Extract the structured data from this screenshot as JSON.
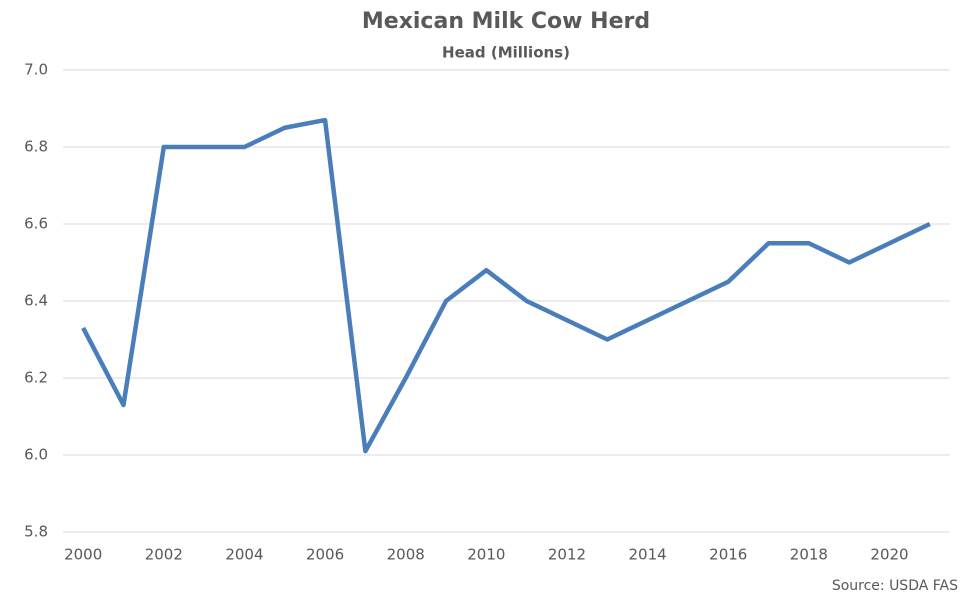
{
  "chart_data": {
    "type": "line",
    "title": "Mexican Milk Cow Herd",
    "subtitle": "Head (Millions)",
    "source": "Source: USDA FAS",
    "x": [
      2000,
      2001,
      2002,
      2003,
      2004,
      2005,
      2006,
      2007,
      2008,
      2009,
      2010,
      2011,
      2012,
      2013,
      2014,
      2015,
      2016,
      2017,
      2018,
      2019,
      2020,
      2021
    ],
    "series": [
      {
        "name": "Mexican Milk Cow Herd",
        "color": "#4a7ebb",
        "values": [
          6.33,
          6.13,
          6.8,
          6.8,
          6.8,
          6.85,
          6.87,
          6.01,
          6.2,
          6.4,
          6.48,
          6.4,
          6.35,
          6.3,
          6.35,
          6.4,
          6.45,
          6.55,
          6.55,
          6.5,
          6.55,
          6.6
        ]
      }
    ],
    "xlim": [
      1999.5,
      2021.5
    ],
    "xticks": [
      2000,
      2002,
      2004,
      2006,
      2008,
      2010,
      2012,
      2014,
      2016,
      2018,
      2020
    ],
    "ylim": [
      5.8,
      7.0
    ],
    "yticks": [
      {
        "value": 5.8,
        "label": "5.8"
      },
      {
        "value": 6.0,
        "label": "6.0"
      },
      {
        "value": 6.2,
        "label": "6.2"
      },
      {
        "value": 6.4,
        "label": "6.4"
      },
      {
        "value": 6.6,
        "label": "6.6"
      },
      {
        "value": 6.8,
        "label": "6.8"
      },
      {
        "value": 7.0,
        "label": "7.0"
      }
    ],
    "grid": true
  }
}
